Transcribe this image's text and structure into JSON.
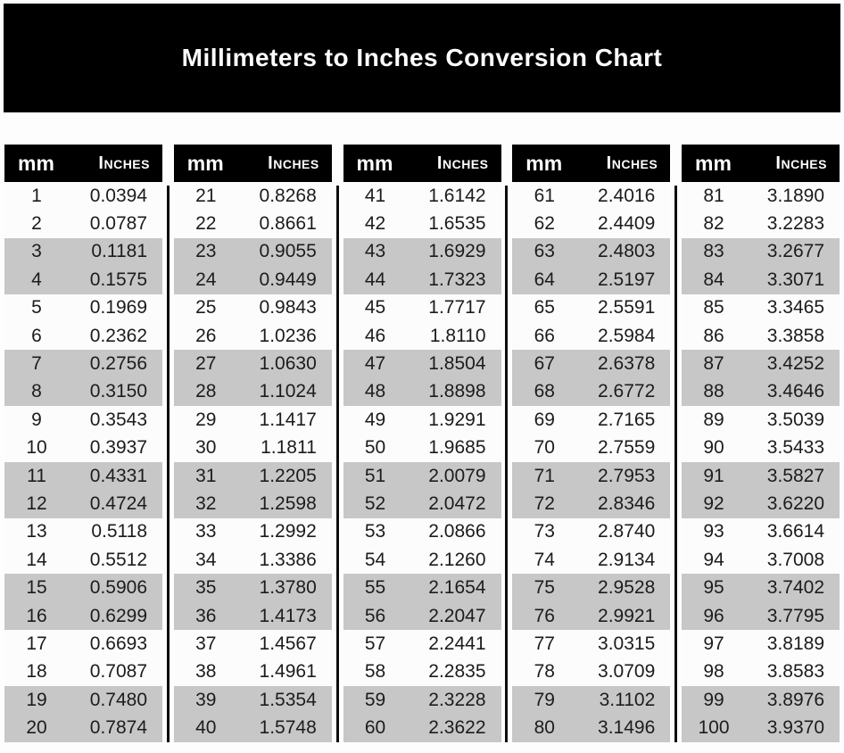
{
  "title": "Millimeters to Inches Conversion Chart",
  "header": {
    "mm_label": "mm",
    "inches_label": "Inches"
  },
  "colors": {
    "banner_bg": "#000000",
    "banner_text": "#ffffff",
    "header_bg": "#000000",
    "header_text": "#ffffff",
    "stripe": "#c7c7c7",
    "row_bg": "#fcfcfc",
    "divider": "#0d0d0d",
    "data_text": "#1c1c1c"
  },
  "chart_data": {
    "type": "table",
    "title": "Millimeters to Inches Conversion Chart",
    "columns": [
      "mm",
      "Inches"
    ],
    "column_groups": 5,
    "rows_per_group": 20,
    "stripe_pattern": "alternating pairs of rows shaded gray starting with rows 3-4",
    "data": [
      [
        "1",
        "0.0394"
      ],
      [
        "2",
        "0.0787"
      ],
      [
        "3",
        "0.1181"
      ],
      [
        "4",
        "0.1575"
      ],
      [
        "5",
        "0.1969"
      ],
      [
        "6",
        "0.2362"
      ],
      [
        "7",
        "0.2756"
      ],
      [
        "8",
        "0.3150"
      ],
      [
        "9",
        "0.3543"
      ],
      [
        "10",
        "0.3937"
      ],
      [
        "11",
        "0.4331"
      ],
      [
        "12",
        "0.4724"
      ],
      [
        "13",
        "0.5118"
      ],
      [
        "14",
        "0.5512"
      ],
      [
        "15",
        "0.5906"
      ],
      [
        "16",
        "0.6299"
      ],
      [
        "17",
        "0.6693"
      ],
      [
        "18",
        "0.7087"
      ],
      [
        "19",
        "0.7480"
      ],
      [
        "20",
        "0.7874"
      ],
      [
        "21",
        "0.8268"
      ],
      [
        "22",
        "0.8661"
      ],
      [
        "23",
        "0.9055"
      ],
      [
        "24",
        "0.9449"
      ],
      [
        "25",
        "0.9843"
      ],
      [
        "26",
        "1.0236"
      ],
      [
        "27",
        "1.0630"
      ],
      [
        "28",
        "1.1024"
      ],
      [
        "29",
        "1.1417"
      ],
      [
        "30",
        "1.1811"
      ],
      [
        "31",
        "1.2205"
      ],
      [
        "32",
        "1.2598"
      ],
      [
        "33",
        "1.2992"
      ],
      [
        "34",
        "1.3386"
      ],
      [
        "35",
        "1.3780"
      ],
      [
        "36",
        "1.4173"
      ],
      [
        "37",
        "1.4567"
      ],
      [
        "38",
        "1.4961"
      ],
      [
        "39",
        "1.5354"
      ],
      [
        "40",
        "1.5748"
      ],
      [
        "41",
        "1.6142"
      ],
      [
        "42",
        "1.6535"
      ],
      [
        "43",
        "1.6929"
      ],
      [
        "44",
        "1.7323"
      ],
      [
        "45",
        "1.7717"
      ],
      [
        "46",
        "1.8110"
      ],
      [
        "47",
        "1.8504"
      ],
      [
        "48",
        "1.8898"
      ],
      [
        "49",
        "1.9291"
      ],
      [
        "50",
        "1.9685"
      ],
      [
        "51",
        "2.0079"
      ],
      [
        "52",
        "2.0472"
      ],
      [
        "53",
        "2.0866"
      ],
      [
        "54",
        "2.1260"
      ],
      [
        "55",
        "2.1654"
      ],
      [
        "56",
        "2.2047"
      ],
      [
        "57",
        "2.2441"
      ],
      [
        "58",
        "2.2835"
      ],
      [
        "59",
        "2.3228"
      ],
      [
        "60",
        "2.3622"
      ],
      [
        "61",
        "2.4016"
      ],
      [
        "62",
        "2.4409"
      ],
      [
        "63",
        "2.4803"
      ],
      [
        "64",
        "2.5197"
      ],
      [
        "65",
        "2.5591"
      ],
      [
        "66",
        "2.5984"
      ],
      [
        "67",
        "2.6378"
      ],
      [
        "68",
        "2.6772"
      ],
      [
        "69",
        "2.7165"
      ],
      [
        "70",
        "2.7559"
      ],
      [
        "71",
        "2.7953"
      ],
      [
        "72",
        "2.8346"
      ],
      [
        "73",
        "2.8740"
      ],
      [
        "74",
        "2.9134"
      ],
      [
        "75",
        "2.9528"
      ],
      [
        "76",
        "2.9921"
      ],
      [
        "77",
        "3.0315"
      ],
      [
        "78",
        "3.0709"
      ],
      [
        "79",
        "3.1102"
      ],
      [
        "80",
        "3.1496"
      ],
      [
        "81",
        "3.1890"
      ],
      [
        "82",
        "3.2283"
      ],
      [
        "83",
        "3.2677"
      ],
      [
        "84",
        "3.3071"
      ],
      [
        "85",
        "3.3465"
      ],
      [
        "86",
        "3.3858"
      ],
      [
        "87",
        "3.4252"
      ],
      [
        "88",
        "3.4646"
      ],
      [
        "89",
        "3.5039"
      ],
      [
        "90",
        "3.5433"
      ],
      [
        "91",
        "3.5827"
      ],
      [
        "92",
        "3.6220"
      ],
      [
        "93",
        "3.6614"
      ],
      [
        "94",
        "3.7008"
      ],
      [
        "95",
        "3.7402"
      ],
      [
        "96",
        "3.7795"
      ],
      [
        "97",
        "3.8189"
      ],
      [
        "98",
        "3.8583"
      ],
      [
        "99",
        "3.8976"
      ],
      [
        "100",
        "3.9370"
      ]
    ]
  }
}
